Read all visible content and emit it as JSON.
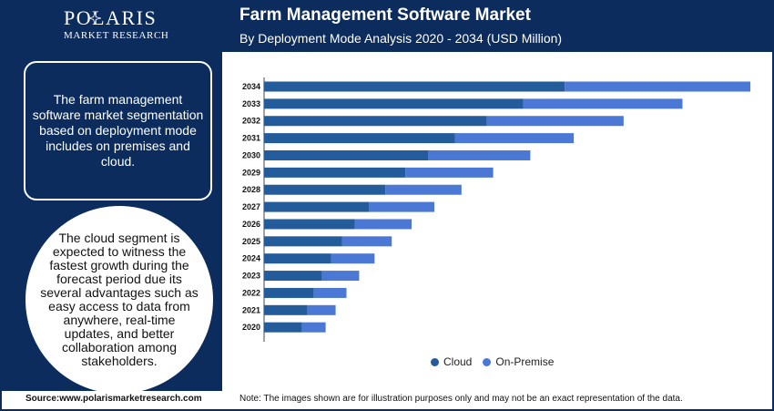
{
  "brand": {
    "name": "POLARIS",
    "sub": "MARKET RESEARCH"
  },
  "header": {
    "title": "Farm Management Software Market",
    "subtitle": "By Deployment Mode Analysis 2020 - 2034 (USD Million)"
  },
  "sidebar": {
    "info": "The farm management software market segmentation based on deployment mode includes on premises and cloud.",
    "highlight": "The cloud segment is expected to witness the fastest growth during the forecast period due its several advantages such as easy access to data from anywhere, real-time updates, and better collaboration among stakeholders."
  },
  "footer": {
    "source": "Source:www.polarismarketresearch.com",
    "note": "Note: The images shown are for illustration purposes only and may not be an exact representation of the data."
  },
  "colors": {
    "navy": "#0b2c5c",
    "cloud": "#245b9a",
    "on_premise": "#4a78d4"
  },
  "chart_data": {
    "type": "bar",
    "orientation": "horizontal",
    "stacked": true,
    "categories": [
      "2034",
      "2033",
      "2032",
      "2031",
      "2030",
      "2029",
      "2028",
      "2027",
      "2026",
      "2025",
      "2024",
      "2023",
      "2022",
      "2021",
      "2020"
    ],
    "series": [
      {
        "name": "Cloud",
        "color": "#245b9a",
        "values": [
          332,
          286,
          246,
          211,
          181,
          156,
          134,
          116,
          100,
          86,
          74,
          64,
          55,
          48,
          42
        ]
      },
      {
        "name": "On-Premise",
        "color": "#4a78d4",
        "values": [
          205,
          176,
          151,
          131,
          113,
          97,
          84,
          72,
          63,
          55,
          48,
          41,
          36,
          31,
          26
        ]
      }
    ],
    "xlim": [
      0,
      550
    ],
    "legend": "bottom",
    "grid": false
  }
}
